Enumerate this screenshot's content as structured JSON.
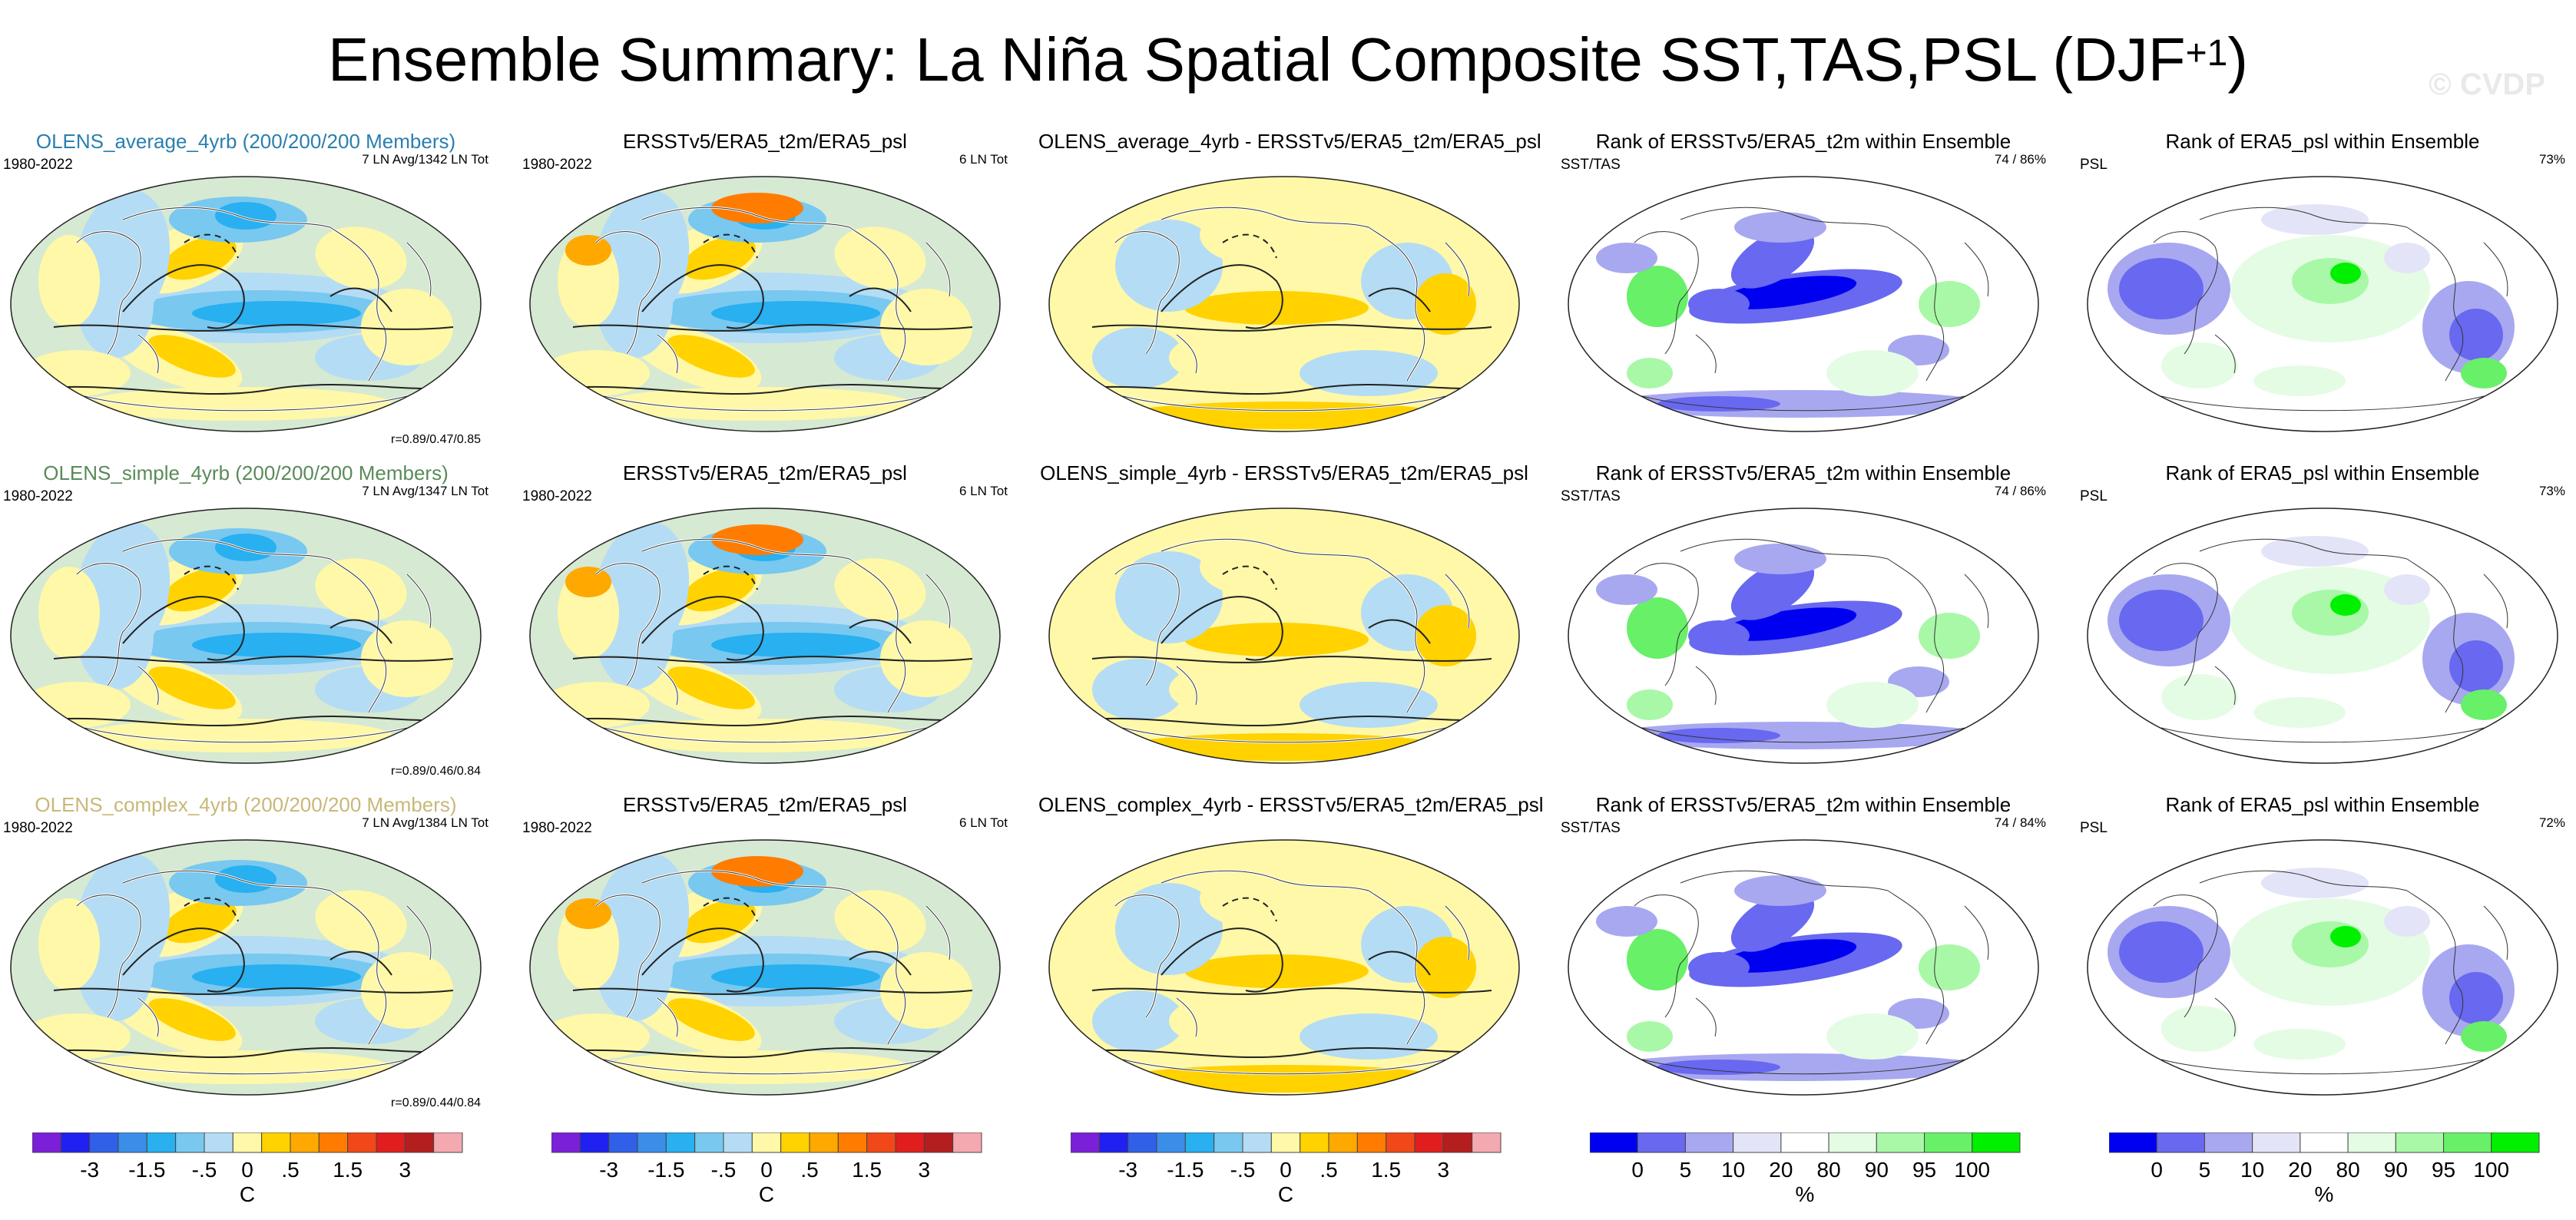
{
  "header": {
    "title": "Ensemble Summary: La Niña Spatial Composite SST,TAS,PSL (DJF",
    "superscript": "+1",
    "title_close": ")",
    "watermark": "© CVDP"
  },
  "rows": [
    {
      "model_label": "OLENS_average_4yrb (200/200/200 Members)",
      "label_color": "#2a7fb0",
      "model_stat": "7 LN Avg/1342 LN Tot",
      "r_value": "r=0.89/0.47/0.85",
      "diff_title": "OLENS_average_4yrb - ERSSTv5/ERA5_t2m/ERA5_psl",
      "rank_sst_pct": "74 /  86%",
      "rank_psl_pct": "73%"
    },
    {
      "model_label": "OLENS_simple_4yrb (200/200/200 Members)",
      "label_color": "#5a8a5a",
      "model_stat": "7 LN Avg/1347 LN Tot",
      "r_value": "r=0.89/0.46/0.84",
      "diff_title": "OLENS_simple_4yrb - ERSSTv5/ERA5_t2m/ERA5_psl",
      "rank_sst_pct": "74 /  86%",
      "rank_psl_pct": "73%"
    },
    {
      "model_label": "OLENS_complex_4yrb (200/200/200 Members)",
      "label_color": "#c8b878",
      "model_stat": "7 LN Avg/1384 LN Tot",
      "r_value": "r=0.89/0.44/0.84",
      "diff_title": "OLENS_complex_4yrb - ERSSTv5/ERA5_t2m/ERA5_psl",
      "rank_sst_pct": "74 /  84%",
      "rank_psl_pct": "72%"
    }
  ],
  "common": {
    "period": "1980-2022",
    "obs_title": "ERSSTv5/ERA5_t2m/ERA5_psl",
    "obs_stat": "6 LN Tot",
    "rank_sst_title": "Rank of ERSSTv5/ERA5_t2m within Ensemble",
    "rank_psl_title": "Rank of ERA5_psl within Ensemble",
    "sst_label": "SST/TAS",
    "psl_label": "PSL"
  },
  "colorbars": {
    "temp": {
      "unit": "C",
      "colors": [
        "#7b20d8",
        "#2020f0",
        "#3060e8",
        "#3a8ee8",
        "#28b0f0",
        "#78c8f0",
        "#b4dcf4",
        "#fff8a8",
        "#ffd200",
        "#ffa800",
        "#ff7c00",
        "#f04818",
        "#e01e1e",
        "#b41e1e",
        "#f4a8b0"
      ],
      "labels": [
        "-3",
        "-1.5",
        "-.5",
        "0",
        ".5",
        "1.5",
        "3"
      ]
    },
    "rank": {
      "unit": "%",
      "colors": [
        "#0000f0",
        "#6868f0",
        "#a8a8f0",
        "#e4e4f8",
        "#ffffff",
        "#e4fce4",
        "#a8f8a8",
        "#68f068",
        "#00f000"
      ],
      "labels": [
        "0",
        "5",
        "10",
        "20",
        "80",
        "90",
        "95",
        "100"
      ]
    }
  }
}
